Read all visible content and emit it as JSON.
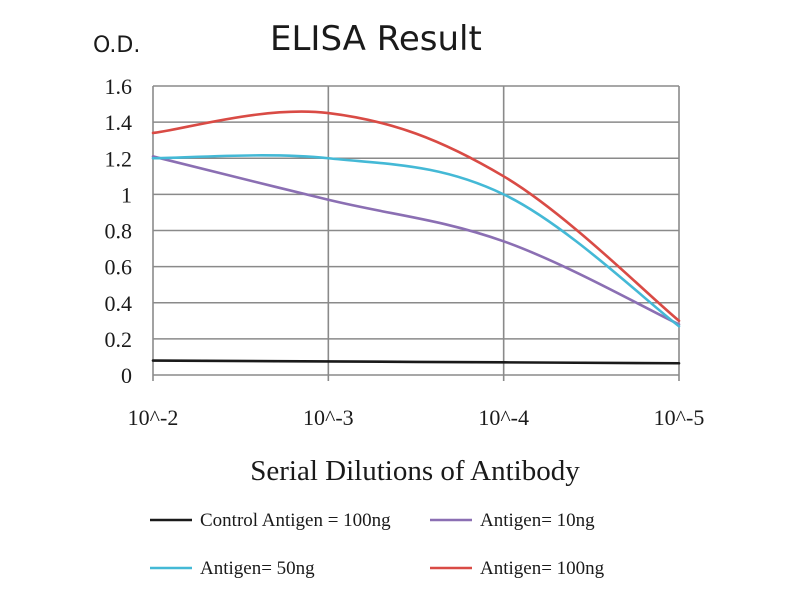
{
  "chart_data": {
    "type": "line",
    "title": "ELISA Result",
    "ylabel": "O.D.",
    "xlabel": "Serial Dilutions of Antibody",
    "categories": [
      "10^-2",
      "10^-3",
      "10^-4",
      "10^-5"
    ],
    "ylim": [
      0,
      1.6
    ],
    "yticks": [
      0,
      0.2,
      0.4,
      0.6,
      0.8,
      1,
      1.2,
      1.4,
      1.6
    ],
    "grid": true,
    "legend_position": "bottom",
    "series": [
      {
        "name": "Control Antigen = 100ng",
        "color": "#1a1a1a",
        "values": [
          0.08,
          0.075,
          0.07,
          0.065
        ],
        "legend_row": 0,
        "legend_col": 0
      },
      {
        "name": "Antigen= 10ng",
        "color": "#8b6fb3",
        "values": [
          1.21,
          0.97,
          0.74,
          0.28
        ],
        "legend_row": 0,
        "legend_col": 1
      },
      {
        "name": "Antigen= 50ng",
        "color": "#44b9d6",
        "values": [
          1.2,
          1.2,
          1.0,
          0.27
        ],
        "legend_row": 1,
        "legend_col": 0
      },
      {
        "name": "Antigen= 100ng",
        "color": "#d94b45",
        "values": [
          1.34,
          1.45,
          1.1,
          0.3
        ],
        "legend_row": 1,
        "legend_col": 1
      }
    ]
  }
}
